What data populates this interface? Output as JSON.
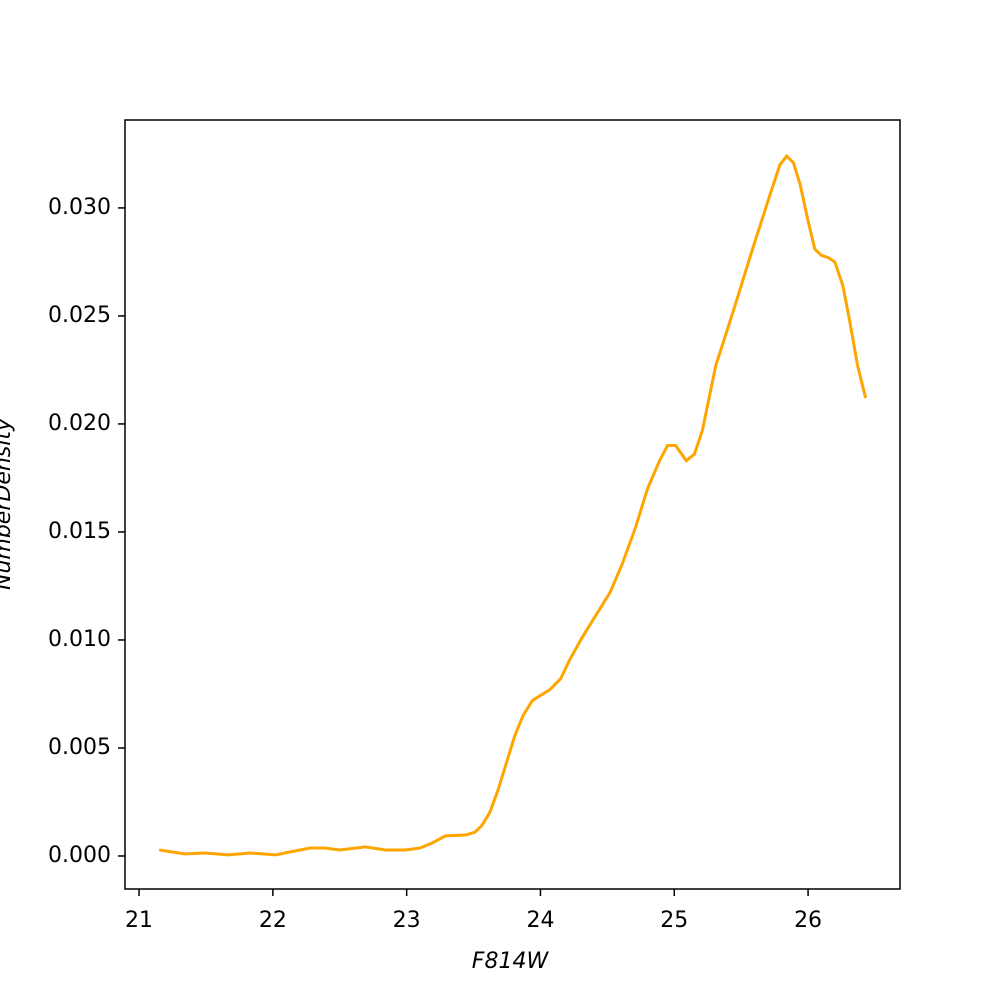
{
  "chart_data": {
    "type": "line",
    "xlabel": "F814W",
    "ylabel": "NumberDensity",
    "x": [
      21.15,
      21.34,
      21.49,
      21.67,
      21.83,
      22.02,
      22.13,
      22.28,
      22.39,
      22.5,
      22.69,
      22.84,
      22.99,
      23.1,
      23.19,
      23.29,
      23.44,
      23.51,
      23.56,
      23.62,
      23.68,
      23.74,
      23.81,
      23.87,
      23.94,
      24.07,
      24.15,
      24.22,
      24.31,
      24.43,
      24.52,
      24.61,
      24.71,
      24.8,
      24.89,
      24.95,
      25.01,
      25.09,
      25.15,
      25.21,
      25.31,
      25.45,
      25.58,
      25.72,
      25.79,
      25.84,
      25.89,
      25.94,
      26.0,
      26.05,
      26.1,
      26.15,
      26.2,
      26.26,
      26.31,
      26.37,
      26.43
    ],
    "series": [
      {
        "color": "#ffa500",
        "values": [
          0.00028,
          0.0001,
          0.00014,
          5e-05,
          0.00014,
          5e-05,
          0.00019,
          0.00037,
          0.00037,
          0.00028,
          0.00042,
          0.00028,
          0.00028,
          0.00037,
          0.0006,
          0.00093,
          0.00097,
          0.0011,
          0.0014,
          0.002,
          0.003,
          0.0042,
          0.0056,
          0.0065,
          0.0072,
          0.0077,
          0.0082,
          0.0091,
          0.0101,
          0.0113,
          0.0122,
          0.0135,
          0.0152,
          0.017,
          0.0183,
          0.019,
          0.019,
          0.0183,
          0.0186,
          0.0197,
          0.0227,
          0.0254,
          0.028,
          0.0307,
          0.032,
          0.0324,
          0.0321,
          0.0311,
          0.0294,
          0.0281,
          0.0278,
          0.0277,
          0.0275,
          0.0264,
          0.0248,
          0.0227,
          0.0212
        ]
      }
    ],
    "xlim": [
      20.895,
      26.687
    ],
    "xticks": [
      21,
      22,
      23,
      24,
      25,
      26
    ],
    "ylim": [
      -0.001528,
      0.03407
    ],
    "yticks": [
      {
        "value": 0,
        "label": "0.000"
      },
      {
        "value": 0.005,
        "label": "0.005"
      },
      {
        "value": 0.01,
        "label": "0.010"
      },
      {
        "value": 0.015,
        "label": "0.015"
      },
      {
        "value": 0.02,
        "label": "0.020"
      },
      {
        "value": 0.025,
        "label": "0.025"
      },
      {
        "value": 0.03,
        "label": "0.030"
      }
    ]
  }
}
